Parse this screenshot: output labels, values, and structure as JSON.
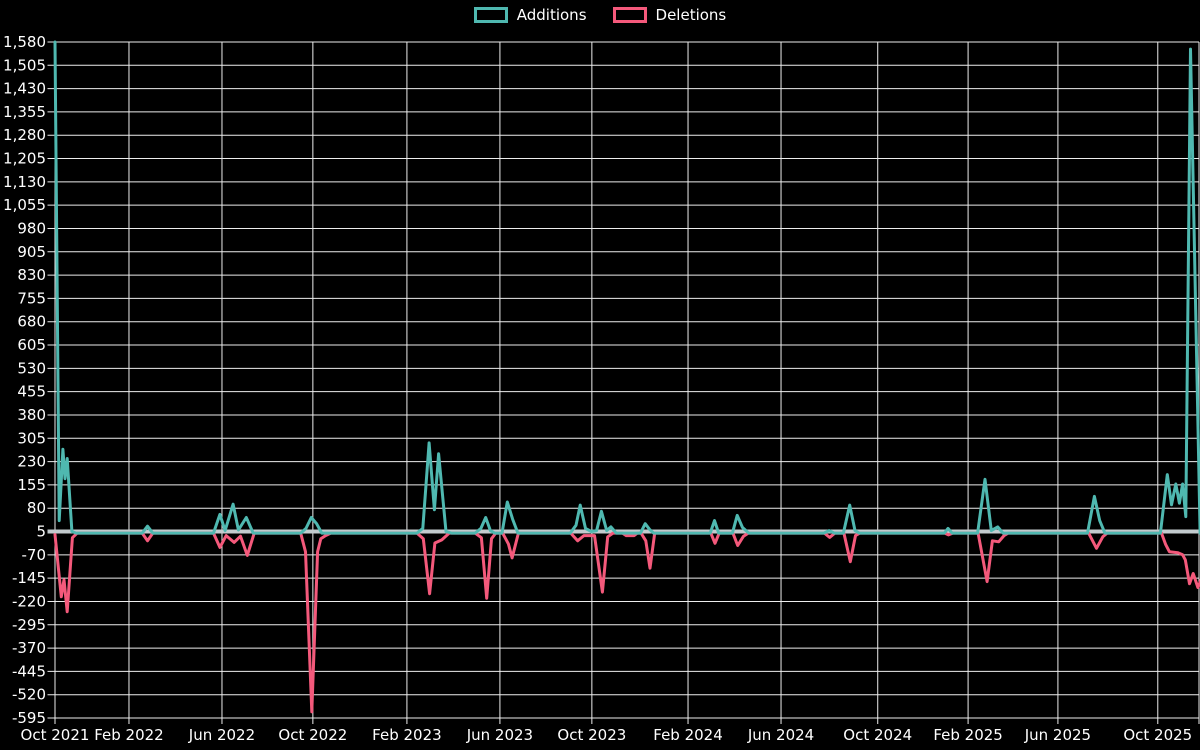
{
  "legend": {
    "items": [
      {
        "label": "Additions",
        "color": "#4fb8b0"
      },
      {
        "label": "Deletions",
        "color": "#f4597b"
      }
    ]
  },
  "chart_data": {
    "type": "line",
    "title": "",
    "legend_position": "top-center",
    "grid": true,
    "colors": {
      "background": "#000000",
      "gridline": "#ededed",
      "zero_line": "#c3cbce",
      "additions": "#4fb8b0",
      "deletions": "#f4597b",
      "text": "#ffffff"
    },
    "y_axis": {
      "min": -595,
      "max": 1580,
      "tick_step": 75,
      "zero_line_value": 5,
      "tick_labels": [
        "1,580",
        "1,505",
        "1,430",
        "1,355",
        "1,280",
        "1,205",
        "1,130",
        "1,055",
        "980",
        "905",
        "830",
        "755",
        "680",
        "605",
        "530",
        "455",
        "380",
        "305",
        "230",
        "155",
        "80",
        "5",
        "-70",
        "-145",
        "-220",
        "-295",
        "-370",
        "-445",
        "-520",
        "-595"
      ]
    },
    "x_axis": {
      "unit": "weeks",
      "weeks_total": 216.5,
      "ticks": [
        {
          "label": "Oct 2021",
          "week": 0
        },
        {
          "label": "Feb 2022",
          "week": 14
        },
        {
          "label": "Jun 2022",
          "week": 31.6
        },
        {
          "label": "Oct 2022",
          "week": 48.8
        },
        {
          "label": "Feb 2023",
          "week": 66.6
        },
        {
          "label": "Jun 2023",
          "week": 84.2
        },
        {
          "label": "Oct 2023",
          "week": 101.6
        },
        {
          "label": "Feb 2024",
          "week": 119.8
        },
        {
          "label": "Jun 2024",
          "week": 137.4
        },
        {
          "label": "Oct 2024",
          "week": 155.7
        },
        {
          "label": "Feb 2025",
          "week": 172.8
        },
        {
          "label": "Jun 2025",
          "week": 189.8
        },
        {
          "label": "Oct 2025",
          "week": 208.7
        }
      ]
    },
    "series": [
      {
        "name": "Additions",
        "color": "#4fb8b0",
        "points": [
          [
            0,
            1580
          ],
          [
            0.8,
            40
          ],
          [
            1.5,
            270
          ],
          [
            1.9,
            175
          ],
          [
            2.3,
            240
          ],
          [
            3.2,
            5
          ],
          [
            4,
            0
          ],
          [
            16.5,
            0
          ],
          [
            17.5,
            22
          ],
          [
            18.5,
            0
          ],
          [
            30,
            0
          ],
          [
            31.2,
            60
          ],
          [
            32.2,
            8
          ],
          [
            33.7,
            93
          ],
          [
            34.7,
            10
          ],
          [
            36.2,
            50
          ],
          [
            37.5,
            0
          ],
          [
            46.5,
            0
          ],
          [
            47.5,
            15
          ],
          [
            48.5,
            50
          ],
          [
            49.5,
            30
          ],
          [
            50.5,
            0
          ],
          [
            68.5,
            0
          ],
          [
            69.6,
            15
          ],
          [
            70.8,
            290
          ],
          [
            71.8,
            75
          ],
          [
            72.6,
            255
          ],
          [
            74,
            5
          ],
          [
            75,
            0
          ],
          [
            79.5,
            0
          ],
          [
            80.6,
            15
          ],
          [
            81.5,
            50
          ],
          [
            82.4,
            8
          ],
          [
            83.2,
            0
          ],
          [
            84.6,
            0
          ],
          [
            85.6,
            100
          ],
          [
            86.6,
            45
          ],
          [
            87.6,
            0
          ],
          [
            97.5,
            0
          ],
          [
            98.6,
            25
          ],
          [
            99.4,
            90
          ],
          [
            100.4,
            15
          ],
          [
            101.5,
            5
          ],
          [
            102.5,
            8
          ],
          [
            103.4,
            70
          ],
          [
            104.4,
            8
          ],
          [
            105.2,
            20
          ],
          [
            106.2,
            0
          ],
          [
            110.8,
            0
          ],
          [
            111.7,
            30
          ],
          [
            112.5,
            12
          ],
          [
            113.3,
            0
          ],
          [
            124,
            0
          ],
          [
            124.8,
            40
          ],
          [
            125.6,
            0
          ],
          [
            128.2,
            0
          ],
          [
            129.1,
            57
          ],
          [
            130.1,
            18
          ],
          [
            131.3,
            0
          ],
          [
            145.5,
            0
          ],
          [
            146.5,
            8
          ],
          [
            147.5,
            0
          ],
          [
            149.2,
            0
          ],
          [
            150.4,
            90
          ],
          [
            151.4,
            8
          ],
          [
            152.2,
            0
          ],
          [
            168.3,
            0
          ],
          [
            169,
            15
          ],
          [
            169.8,
            0
          ],
          [
            174.6,
            0
          ],
          [
            176,
            173
          ],
          [
            177.2,
            8
          ],
          [
            178.4,
            20
          ],
          [
            179.4,
            0
          ],
          [
            195.4,
            0
          ],
          [
            196.7,
            118
          ],
          [
            197.7,
            40
          ],
          [
            198.7,
            0
          ],
          [
            209.2,
            0
          ],
          [
            210.5,
            188
          ],
          [
            211.3,
            91
          ],
          [
            212.1,
            158
          ],
          [
            212.8,
            96
          ],
          [
            213.4,
            158
          ],
          [
            214,
            53
          ],
          [
            214.9,
            1557
          ],
          [
            216.7,
            0
          ],
          [
            216.9,
            0
          ]
        ]
      },
      {
        "name": "Deletions",
        "color": "#f4597b",
        "points": [
          [
            0,
            -5
          ],
          [
            1.2,
            -205
          ],
          [
            1.7,
            -150
          ],
          [
            2.3,
            -253
          ],
          [
            3.3,
            -15
          ],
          [
            4.2,
            0
          ],
          [
            16.5,
            0
          ],
          [
            17.5,
            -25
          ],
          [
            18.5,
            0
          ],
          [
            30,
            0
          ],
          [
            31.2,
            -46
          ],
          [
            32.4,
            -8
          ],
          [
            33.9,
            -30
          ],
          [
            35.1,
            -10
          ],
          [
            36.4,
            -72
          ],
          [
            37.7,
            0
          ],
          [
            46.5,
            0
          ],
          [
            47.4,
            -60
          ],
          [
            48.6,
            -575
          ],
          [
            49.7,
            -60
          ],
          [
            50.3,
            -18
          ],
          [
            51.2,
            -8
          ],
          [
            52.2,
            0
          ],
          [
            68.5,
            0
          ],
          [
            69.7,
            -18
          ],
          [
            70.9,
            -195
          ],
          [
            71.9,
            -32
          ],
          [
            73.2,
            -22
          ],
          [
            74.6,
            0
          ],
          [
            79.5,
            0
          ],
          [
            80.7,
            -15
          ],
          [
            81.7,
            -210
          ],
          [
            82.6,
            -18
          ],
          [
            83.4,
            0
          ],
          [
            84.7,
            0
          ],
          [
            85.8,
            -35
          ],
          [
            86.5,
            -80
          ],
          [
            87.7,
            0
          ],
          [
            97.6,
            0
          ],
          [
            98.9,
            -25
          ],
          [
            100.1,
            -8
          ],
          [
            102.1,
            -8
          ],
          [
            103.6,
            -190
          ],
          [
            104.6,
            -12
          ],
          [
            105.6,
            0
          ],
          [
            107.4,
            0
          ],
          [
            108.1,
            -8
          ],
          [
            109.6,
            -8
          ],
          [
            110.2,
            0
          ],
          [
            110.9,
            0
          ],
          [
            111.8,
            -25
          ],
          [
            112.6,
            -113
          ],
          [
            113.5,
            0
          ],
          [
            124.1,
            0
          ],
          [
            124.9,
            -33
          ],
          [
            125.7,
            0
          ],
          [
            128.3,
            0
          ],
          [
            129.2,
            -40
          ],
          [
            130.3,
            -10
          ],
          [
            131.2,
            0
          ],
          [
            145.6,
            0
          ],
          [
            146.6,
            -14
          ],
          [
            147.6,
            0
          ],
          [
            149.3,
            0
          ],
          [
            150.5,
            -92
          ],
          [
            151.5,
            -8
          ],
          [
            152.3,
            0
          ],
          [
            168.4,
            0
          ],
          [
            169.1,
            -6
          ],
          [
            169.9,
            0
          ],
          [
            174.7,
            0
          ],
          [
            176.4,
            -156
          ],
          [
            177.4,
            -25
          ],
          [
            178.6,
            -28
          ],
          [
            179.6,
            -8
          ],
          [
            180.4,
            0
          ],
          [
            195.6,
            0
          ],
          [
            197.1,
            -49
          ],
          [
            198.3,
            -12
          ],
          [
            199.1,
            0
          ],
          [
            209.4,
            0
          ],
          [
            210.2,
            -37
          ],
          [
            210.9,
            -60
          ],
          [
            212.5,
            -63
          ],
          [
            213.4,
            -70
          ],
          [
            213.9,
            -86
          ],
          [
            214.7,
            -163
          ],
          [
            215.4,
            -130
          ],
          [
            216.3,
            -175
          ],
          [
            216.9,
            -150
          ]
        ]
      }
    ]
  }
}
